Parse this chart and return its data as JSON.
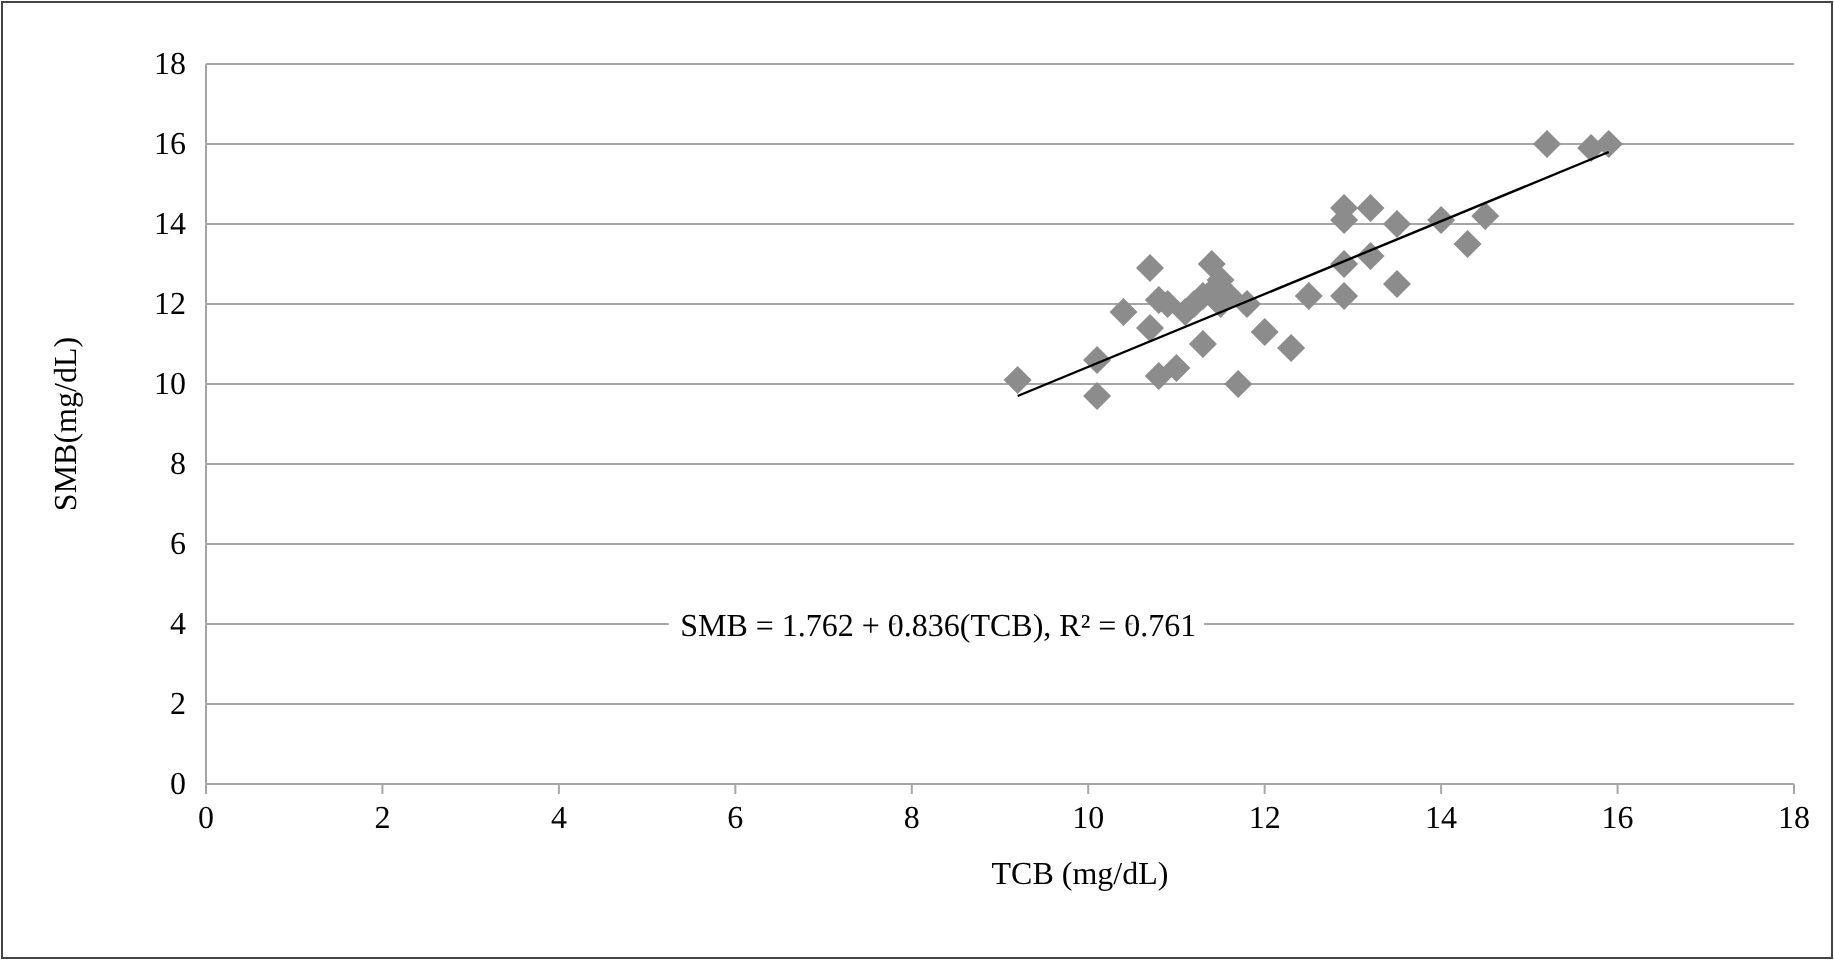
{
  "chart_data": {
    "type": "scatter",
    "xlabel": "TCB (mg/dL)",
    "ylabel": "SMB(mg/dL)",
    "xlim": [
      0,
      18
    ],
    "ylim": [
      0,
      18
    ],
    "xticks": [
      0,
      2,
      4,
      6,
      8,
      10,
      12,
      14,
      16,
      18
    ],
    "yticks": [
      0,
      2,
      4,
      6,
      8,
      10,
      12,
      14,
      16,
      18
    ],
    "grid": "y",
    "marker": "diamond",
    "annotations": [
      "SMB = 1.762 + 0.836(TCB), R² = 0.761"
    ],
    "series": [
      {
        "color": "#8c8c8c",
        "x": [
          9.2,
          10.1,
          10.1,
          10.4,
          10.7,
          10.7,
          10.8,
          10.8,
          10.9,
          11.0,
          11.1,
          11.2,
          11.3,
          11.3,
          11.4,
          11.4,
          11.5,
          11.5,
          11.6,
          11.8,
          11.7,
          12.0,
          12.3,
          12.5,
          12.9,
          12.9,
          12.9,
          12.9,
          13.2,
          13.2,
          13.5,
          13.5,
          14.0,
          14.3,
          14.5,
          15.2,
          15.7,
          15.9
        ],
        "values": [
          10.1,
          10.6,
          9.7,
          11.8,
          12.9,
          11.4,
          12.1,
          10.2,
          12.0,
          10.4,
          11.8,
          12.0,
          12.2,
          11.0,
          13.0,
          12.3,
          12.6,
          12.0,
          12.2,
          12.0,
          10.0,
          11.3,
          10.9,
          12.2,
          14.4,
          14.1,
          13.0,
          12.2,
          14.4,
          13.2,
          14.0,
          12.5,
          14.1,
          13.5,
          14.2,
          16.0,
          15.9,
          16.0
        ]
      },
      {
        "type": "line",
        "color": "#000000",
        "x": [
          9.2,
          15.9
        ],
        "values": [
          9.7,
          15.8
        ],
        "marker": "none"
      }
    ]
  }
}
